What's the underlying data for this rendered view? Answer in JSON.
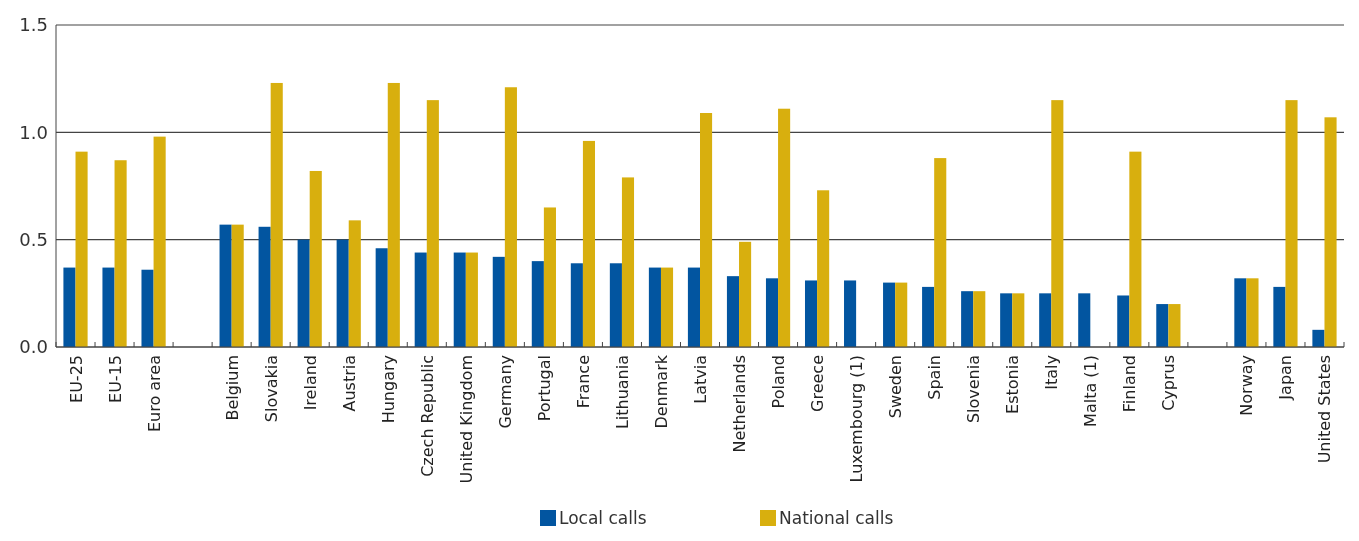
{
  "chart_data": {
    "type": "bar",
    "categories": [
      "EU-25",
      "EU-15",
      "Euro area",
      null,
      "Belgium",
      "Slovakia",
      "Ireland",
      "Austria",
      "Hungary",
      "Czech Republic",
      "United Kingdom",
      "Germany",
      "Portugal",
      "France",
      "Lithuania",
      "Denmark",
      "Latvia",
      "Netherlands",
      "Poland",
      "Greece",
      "Luxembourg (1)",
      "Sweden",
      "Spain",
      "Slovenia",
      "Estonia",
      "Italy",
      "Malta (1)",
      "Finland",
      "Cyprus",
      null,
      "Norway",
      "Japan",
      "United States"
    ],
    "series": [
      {
        "name": "Local calls",
        "color": "#0255a0",
        "values": [
          0.37,
          0.37,
          0.36,
          null,
          0.57,
          0.56,
          0.5,
          0.5,
          0.46,
          0.44,
          0.44,
          0.42,
          0.4,
          0.39,
          0.39,
          0.37,
          0.37,
          0.33,
          0.32,
          0.31,
          0.31,
          0.3,
          0.28,
          0.26,
          0.25,
          0.25,
          0.25,
          0.24,
          0.2,
          null,
          0.32,
          0.28,
          0.08
        ]
      },
      {
        "name": "National calls",
        "color": "#d8af0e",
        "values": [
          0.91,
          0.87,
          0.98,
          null,
          0.57,
          1.23,
          0.82,
          0.59,
          1.23,
          1.15,
          0.44,
          1.21,
          0.65,
          0.96,
          0.79,
          0.37,
          1.09,
          0.49,
          1.11,
          0.73,
          null,
          0.3,
          0.88,
          0.26,
          0.25,
          1.15,
          null,
          0.91,
          0.2,
          null,
          0.32,
          1.15,
          1.07
        ]
      }
    ],
    "ylim": [
      0,
      1.5
    ],
    "yticks": [
      {
        "value": 0,
        "label": "0.0"
      },
      {
        "value": 0.5,
        "label": "0.5"
      },
      {
        "value": 1,
        "label": "1.0"
      },
      {
        "value": 1.5,
        "label": "1.5"
      }
    ],
    "grid": "y",
    "legend": "bottom"
  }
}
